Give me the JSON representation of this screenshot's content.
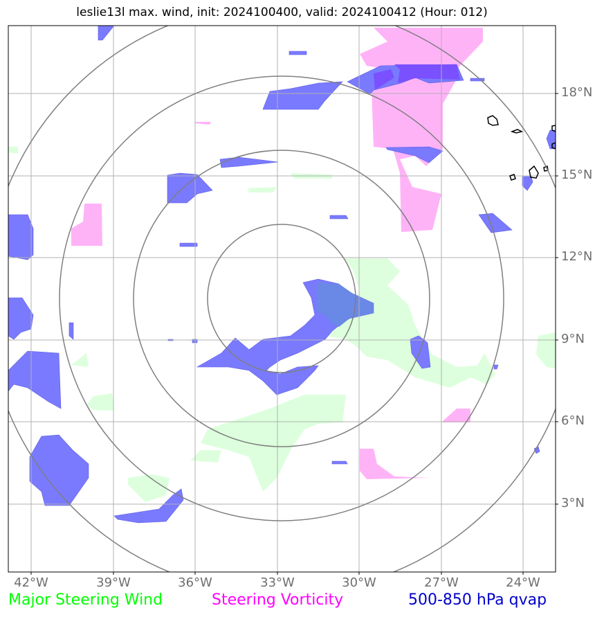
{
  "title": "leslie13l max. wind, init: 2024100400, valid: 2024100412 (Hour: 012)",
  "lat_labels": [
    "18°N",
    "15°N",
    "12°N",
    "9°N",
    "6°N",
    "3°N"
  ],
  "lon_labels": [
    "42°W",
    "39°W",
    "36°W",
    "33°W",
    "30°W",
    "27°W",
    "24°W"
  ],
  "legend": [
    {
      "label": "Major Steering Wind",
      "color": "#00ff00"
    },
    {
      "label": "Steering Vorticity",
      "color": "#ff00ff"
    },
    {
      "label": "500-850 hPa qvap",
      "color": "#0000cc"
    }
  ],
  "colors": {
    "wind_fill": "#ddffdd",
    "vorticity_fill": "#ffb3f7",
    "qvap_fill": "#7a7aff",
    "overlap_fill": "#7a50ff",
    "range_rings": "#7f7f7f",
    "gridlines": "#b0b0b0"
  },
  "map": {
    "center_lon": "33°W",
    "center_lat": "10.5°N",
    "range_rings": 4,
    "lon_range": [
      "42.8°W",
      "22.8°W"
    ],
    "lat_range": [
      "0.5°N",
      "20.5°N"
    ]
  }
}
